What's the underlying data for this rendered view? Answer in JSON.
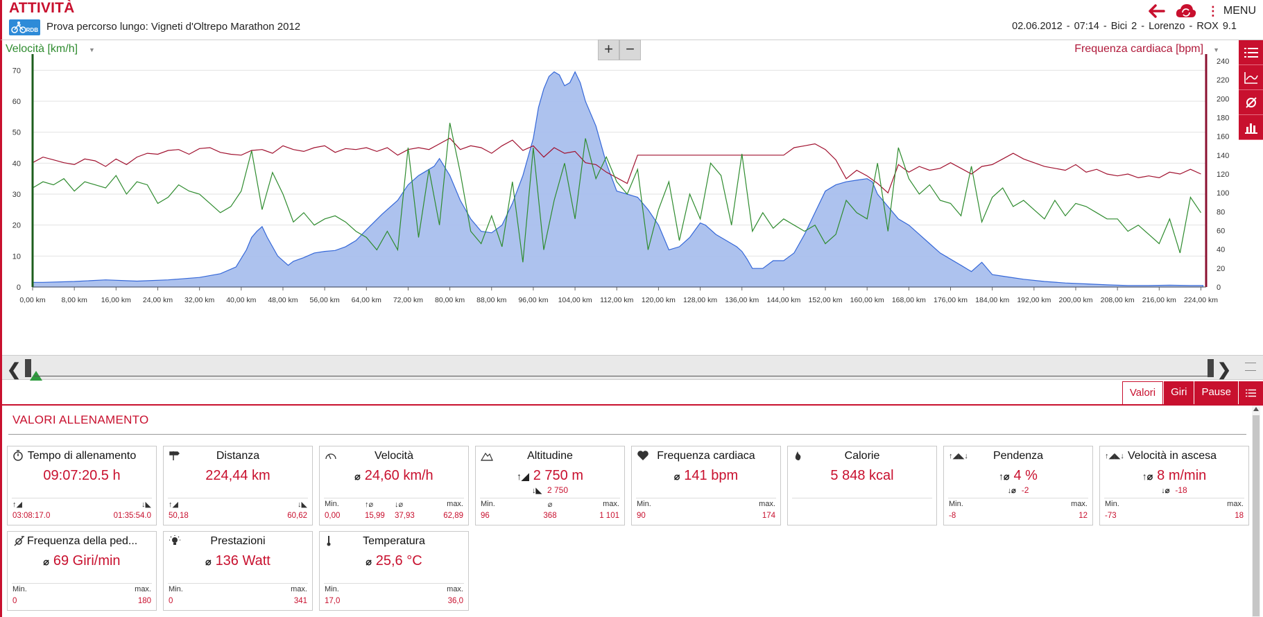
{
  "header": {
    "app_title": "ATTIVITÀ",
    "logo_text": "RDB",
    "session_name": "Prova percorso lungo: Vigneti d'Oltrepo Marathon 2012",
    "session_meta": "02.06.2012  -  07:14  -  Bici 2  -  Lorenzo  -  ROX 9.1",
    "menu_label": "MENU"
  },
  "chart_controls": {
    "left_axis_select": "Velocità [km/h]",
    "right_axis_select": "Frequenza cardiaca [bpm]",
    "zoom_in": "+",
    "zoom_out": "−"
  },
  "chart_data": {
    "type": "area",
    "xlabel": "",
    "x_unit": "km",
    "xlim": [
      0,
      225
    ],
    "x_ticks": [
      "0,00 km",
      "8,00 km",
      "16,00 km",
      "24,00 km",
      "32,00 km",
      "40,00 km",
      "48,00 km",
      "56,00 km",
      "64,00 km",
      "72,00 km",
      "80,00 km",
      "88,00 km",
      "96,00 km",
      "104,00 km",
      "112,00 km",
      "120,00 km",
      "128,00 km",
      "136,00 km",
      "144,00 km",
      "152,00 km",
      "160,00 km",
      "168,00 km",
      "176,00 km",
      "184,00 km",
      "192,00 km",
      "200,00 km",
      "208,00 km",
      "216,00 km",
      "224,00 km"
    ],
    "ylim_left": [
      0,
      73
    ],
    "y_ticks_left": [
      "0",
      "10",
      "20",
      "30",
      "40",
      "50",
      "60",
      "70"
    ],
    "ylim_right": [
      0,
      240
    ],
    "y_ticks_right": [
      "0",
      "20",
      "40",
      "60",
      "80",
      "100",
      "120",
      "140",
      "160",
      "180",
      "200",
      "220",
      "240"
    ],
    "grid": true,
    "series": [
      {
        "name": "Altitudine",
        "axis": "left-scaled",
        "color": "#a9bfee",
        "stroke": "#2a5fd6",
        "x": [
          0,
          2,
          8,
          14,
          20,
          26,
          32,
          36,
          39,
          41,
          42,
          43,
          44,
          45,
          47,
          49,
          50,
          52,
          54,
          56,
          58,
          60,
          62,
          64,
          67,
          70,
          72,
          74,
          75,
          77,
          78,
          80,
          82,
          84,
          86,
          88,
          90,
          92,
          94,
          96,
          97,
          98,
          99,
          100,
          101,
          102,
          103,
          104,
          105,
          106,
          108,
          110,
          112,
          116,
          118,
          120,
          122,
          124,
          126,
          128,
          129,
          131,
          133,
          135,
          136,
          137,
          138,
          140,
          142,
          144,
          146,
          148,
          150,
          152,
          154,
          156,
          158,
          160,
          161,
          162,
          164,
          166,
          168,
          170,
          172,
          174,
          176,
          178,
          180,
          182,
          184,
          186,
          188,
          190,
          194,
          198,
          202,
          206,
          210,
          214,
          218,
          222,
          224.4
        ],
        "y": [
          1.5,
          1.5,
          1.8,
          2.3,
          1.9,
          2.3,
          3.1,
          4.3,
          6.5,
          12,
          16,
          18,
          19.5,
          16,
          10,
          7,
          8.3,
          9.5,
          11,
          11.5,
          11.8,
          13,
          15,
          18.5,
          23.5,
          28,
          33,
          36,
          37,
          39,
          41.5,
          36,
          28,
          22,
          18,
          17.5,
          20,
          27,
          36,
          48,
          58,
          64,
          68,
          69.5,
          68.5,
          65,
          66,
          69.5,
          66,
          60,
          52,
          40,
          31,
          29,
          25,
          20,
          12,
          13,
          16,
          20.7,
          20,
          17,
          15,
          13,
          11.5,
          9,
          6,
          6,
          8.5,
          8.5,
          11,
          17,
          24,
          31,
          33,
          34,
          34.5,
          35,
          34,
          30,
          26,
          22,
          20,
          17,
          14,
          11,
          9,
          7,
          5,
          8,
          4,
          3.5,
          3,
          2.5,
          1.8,
          1.3,
          1,
          0.7,
          0.5,
          0.5,
          0.6,
          0.5,
          0.5
        ]
      },
      {
        "name": "Velocità [km/h]",
        "axis": "left",
        "color": "#2e8b2e",
        "x": [
          0,
          2,
          4,
          6,
          8,
          10,
          12,
          14,
          16,
          18,
          20,
          22,
          24,
          26,
          28,
          30,
          32,
          34,
          36,
          38,
          40,
          42,
          44,
          46,
          48,
          50,
          52,
          54,
          56,
          58,
          60,
          62,
          64,
          66,
          68,
          70,
          72,
          74,
          76,
          78,
          80,
          82,
          84,
          86,
          88,
          90,
          92,
          94,
          96,
          98,
          100,
          102,
          104,
          106,
          108,
          110,
          112,
          114,
          116,
          118,
          120,
          122,
          124,
          126,
          128,
          130,
          132,
          134,
          136,
          138,
          140,
          142,
          144,
          146,
          148,
          150,
          152,
          154,
          156,
          158,
          160,
          162,
          164,
          166,
          168,
          170,
          172,
          174,
          176,
          178,
          180,
          182,
          184,
          186,
          188,
          190,
          192,
          194,
          196,
          198,
          200,
          202,
          204,
          206,
          208,
          210,
          212,
          214,
          216,
          218,
          220,
          222,
          224
        ],
        "y": [
          32,
          34,
          33,
          35,
          31,
          34,
          33,
          32,
          36,
          30,
          34,
          33,
          27,
          29,
          33,
          31,
          30,
          27,
          24,
          26,
          31,
          44,
          25,
          37,
          30,
          21,
          24,
          20,
          22,
          23,
          21,
          18,
          16,
          12,
          18,
          12,
          45,
          16,
          38,
          20,
          53,
          37,
          18,
          14,
          23,
          13,
          34,
          8,
          45,
          12,
          28,
          40,
          22,
          48,
          35,
          42,
          34,
          30,
          38,
          12,
          25,
          34,
          15,
          30,
          22,
          40,
          36,
          20,
          43,
          18,
          24,
          19,
          22,
          20,
          18,
          20,
          14,
          17,
          28,
          24,
          22,
          40,
          18,
          45,
          35,
          30,
          33,
          28,
          27,
          23,
          39,
          21,
          29,
          32,
          26,
          28,
          25,
          22,
          28,
          23,
          27,
          26,
          24,
          22,
          22,
          18,
          20,
          17,
          14,
          22,
          11,
          29,
          24
        ]
      },
      {
        "name": "Frequenza cardiaca [bpm]",
        "axis": "right",
        "color": "#a0102e",
        "x": [
          0,
          2,
          4,
          6,
          8,
          10,
          12,
          14,
          16,
          18,
          20,
          22,
          24,
          26,
          28,
          30,
          32,
          34,
          36,
          38,
          40,
          42,
          44,
          46,
          48,
          50,
          52,
          54,
          56,
          58,
          60,
          62,
          64,
          66,
          68,
          70,
          72,
          74,
          76,
          78,
          80,
          82,
          84,
          86,
          88,
          90,
          92,
          94,
          96,
          98,
          100,
          102,
          104,
          106,
          108,
          110,
          112,
          114,
          116,
          118,
          120,
          122,
          124,
          126,
          128,
          130,
          132,
          134,
          136,
          138,
          140,
          142,
          144,
          146,
          148,
          150,
          152,
          154,
          156,
          158,
          160,
          162,
          164,
          166,
          168,
          170,
          172,
          174,
          176,
          178,
          180,
          182,
          184,
          186,
          188,
          190,
          192,
          194,
          196,
          198,
          200,
          202,
          204,
          206,
          208,
          210,
          212,
          214,
          216,
          218,
          220,
          222,
          224
        ],
        "y": [
          132,
          138,
          135,
          132,
          130,
          136,
          134,
          128,
          136,
          130,
          138,
          142,
          141,
          145,
          146,
          141,
          147,
          148,
          143,
          141,
          140,
          145,
          146,
          142,
          150,
          146,
          144,
          148,
          150,
          143,
          147,
          146,
          148,
          144,
          148,
          140,
          146,
          148,
          146,
          152,
          158,
          146,
          150,
          148,
          142,
          150,
          156,
          145,
          150,
          138,
          148,
          142,
          144,
          132,
          130,
          122,
          116,
          110,
          140,
          140,
          140,
          140,
          140,
          140,
          140,
          140,
          140,
          140,
          140,
          140,
          140,
          140,
          140,
          148,
          150,
          152,
          146,
          135,
          115,
          124,
          118,
          110,
          100,
          130,
          122,
          128,
          124,
          126,
          132,
          126,
          120,
          128,
          130,
          136,
          142,
          136,
          132,
          128,
          126,
          124,
          130,
          122,
          125,
          120,
          118,
          120,
          116,
          118,
          116,
          122,
          120,
          125,
          120
        ]
      }
    ]
  },
  "tabs": [
    "Valori",
    "Giri",
    "Pause"
  ],
  "section_title": "VALORI ALLENAMENTO",
  "cards": [
    {
      "title": "Tempo di allenamento",
      "value": "09:07:20.5 h",
      "l_label": "",
      "r_label": "",
      "l_value": "03:08:17.0",
      "m_value": "",
      "r_value": "01:35:54.0"
    },
    {
      "title": "Distanza",
      "value": "224,44 km",
      "l_label": "",
      "r_label": "",
      "l_value": "50,18",
      "m_value": "",
      "r_value": "60,62"
    },
    {
      "title": "Velocità",
      "value": "24,60 km/h",
      "l_label": "Min.",
      "r_label": "max.",
      "l_value": "0,00",
      "m_value": "15,99",
      "m2_value": "37,93",
      "r_value": "62,89"
    },
    {
      "title": "Altitudine",
      "value": "2 750 m",
      "sub": "2 750",
      "l_label": "Min.",
      "r_label": "max.",
      "l_value": "96",
      "m_value": "368",
      "r_value": "1 101"
    },
    {
      "title": "Frequenza cardiaca",
      "value": "141 bpm",
      "l_label": "Min.",
      "r_label": "max.",
      "l_value": "90",
      "m_value": "",
      "r_value": "174"
    },
    {
      "title": "Calorie",
      "value": "5 848 kcal",
      "l_label": "",
      "r_label": "",
      "l_value": "",
      "m_value": "",
      "r_value": ""
    },
    {
      "title": "Pendenza",
      "value": "4 %",
      "sub": "-2",
      "l_label": "Min.",
      "r_label": "max.",
      "l_value": "-8",
      "m_value": "",
      "r_value": "12"
    },
    {
      "title": "Velocità in ascesa",
      "value": "8 m/min",
      "sub": "-18",
      "l_label": "Min.",
      "r_label": "max.",
      "l_value": "-73",
      "m_value": "",
      "r_value": "18"
    },
    {
      "title": "Frequenza della ped...",
      "value": "69 Giri/min",
      "l_label": "Min.",
      "r_label": "max.",
      "l_value": "0",
      "m_value": "",
      "r_value": "180"
    },
    {
      "title": "Prestazioni",
      "value": "136 Watt",
      "l_label": "Min.",
      "r_label": "max.",
      "l_value": "0",
      "m_value": "",
      "r_value": "341"
    },
    {
      "title": "Temperatura",
      "value": "25,6 °C",
      "l_label": "Min.",
      "r_label": "max.",
      "l_value": "17,0",
      "m_value": "",
      "r_value": "36,0"
    }
  ],
  "avg_symbol": "⌀"
}
